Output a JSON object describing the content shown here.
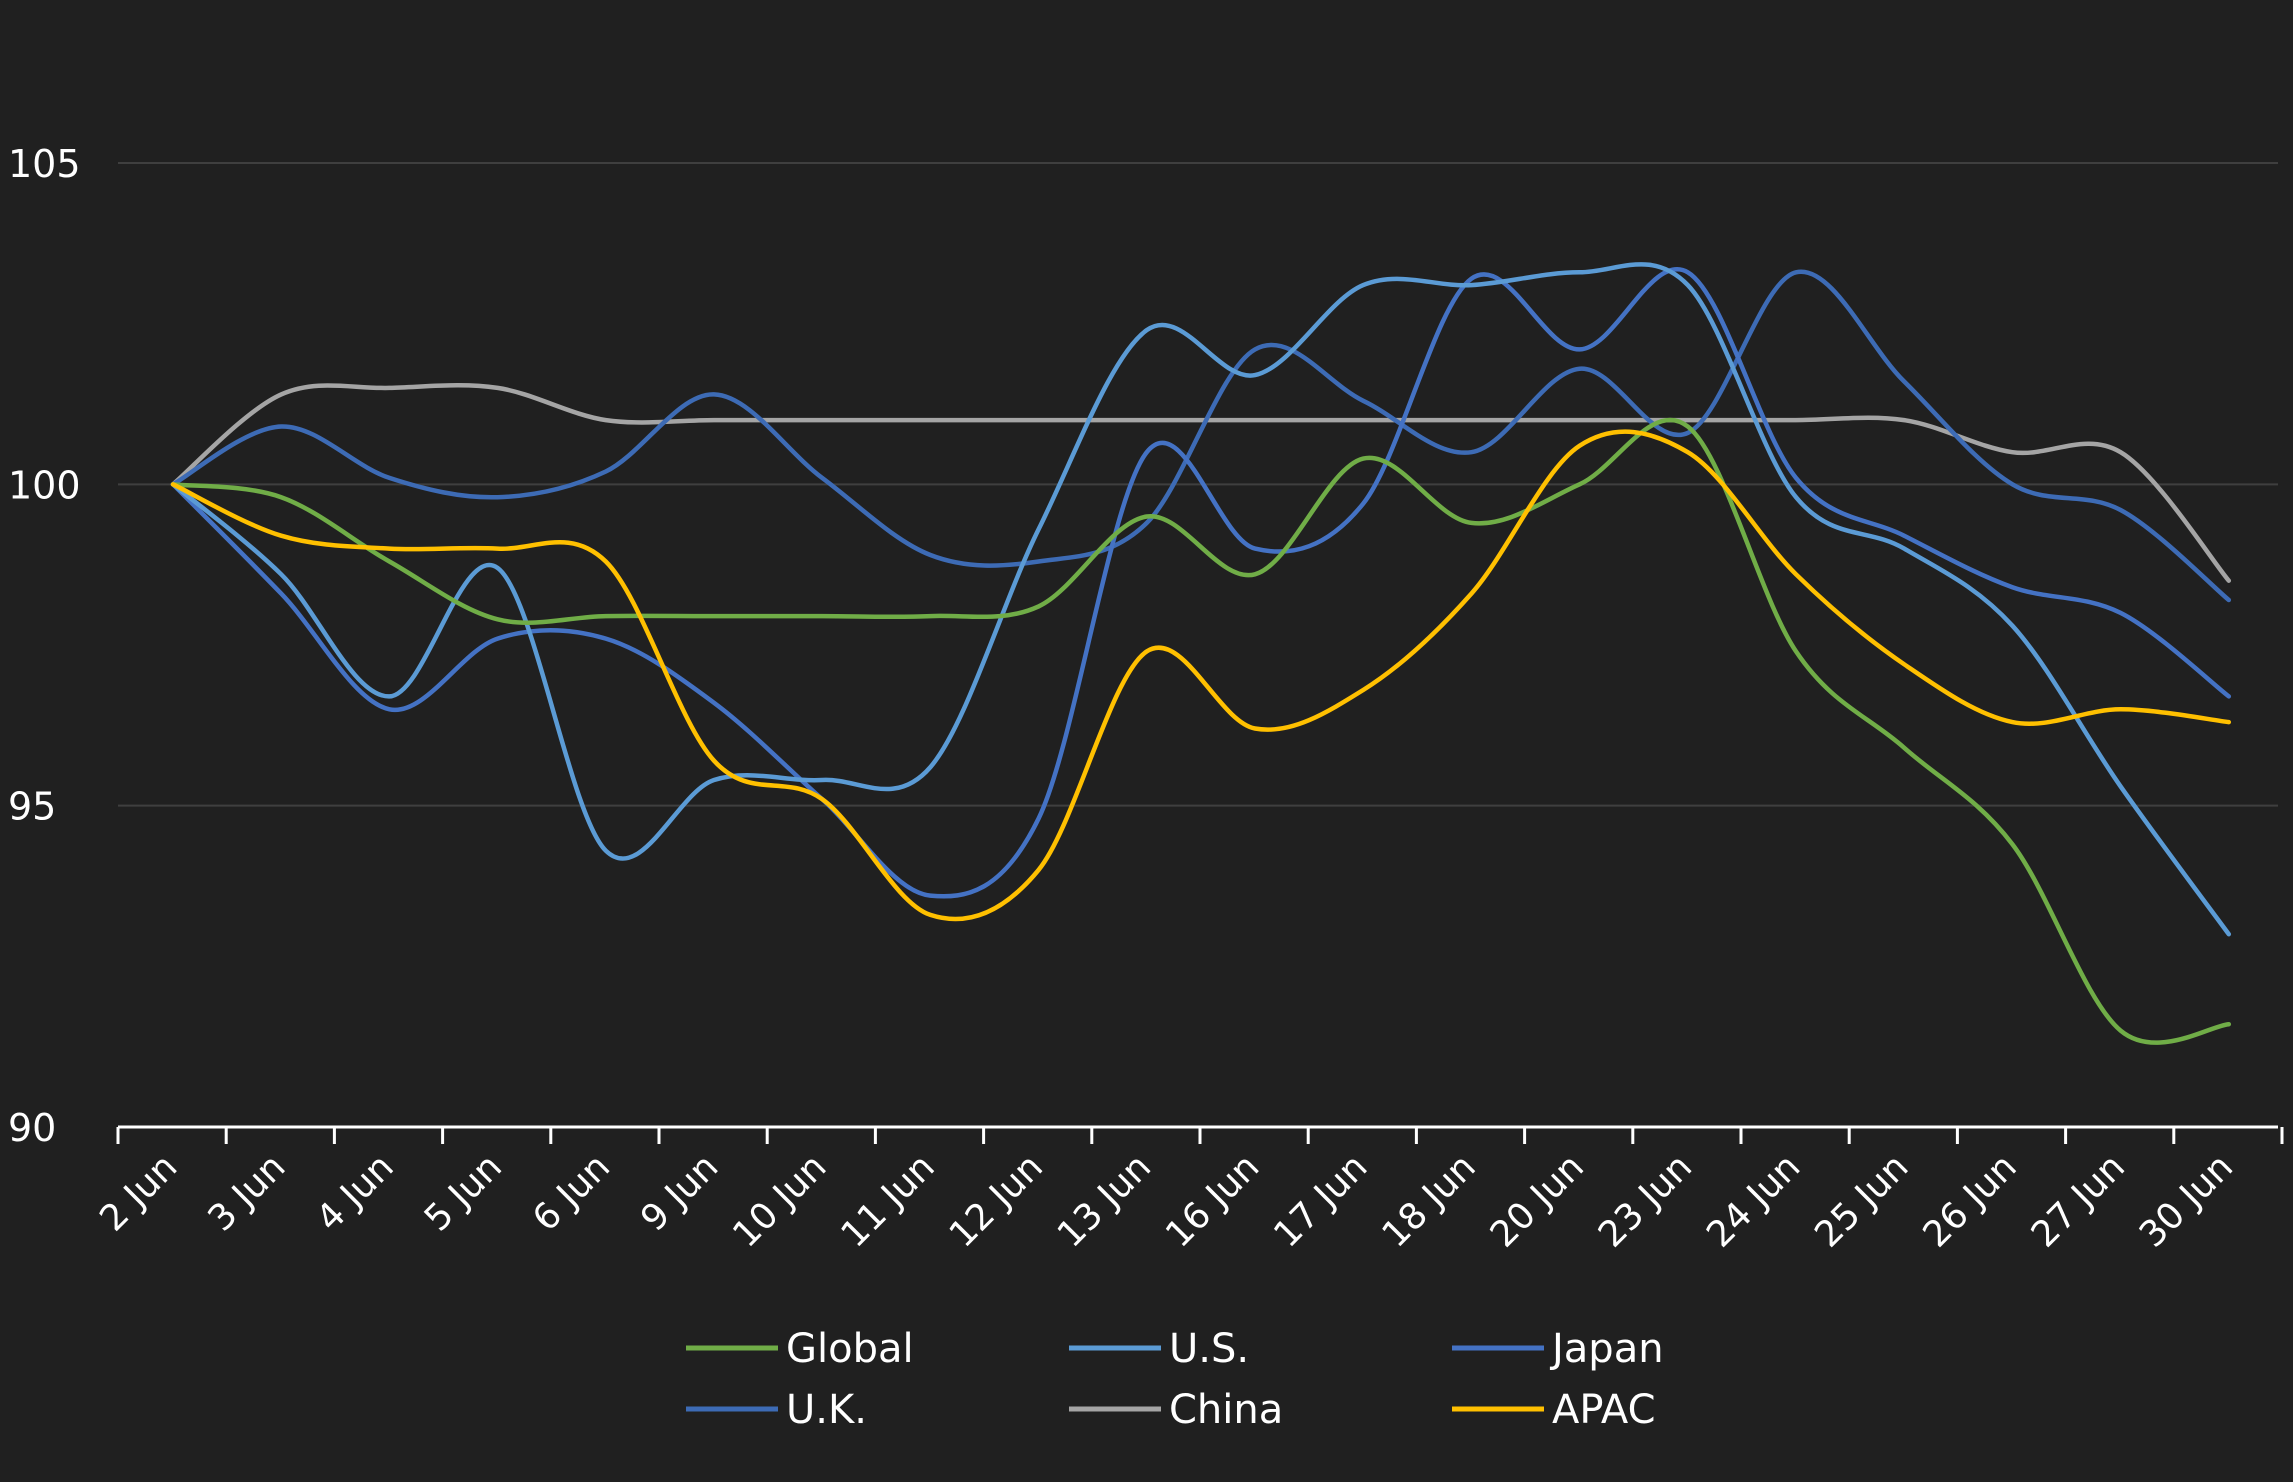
{
  "chart_data": {
    "type": "line",
    "title": "",
    "xlabel": "",
    "ylabel": "",
    "categories": [
      "2 Jun",
      "3 Jun",
      "4 Jun",
      "5 Jun",
      "6 Jun",
      "9 Jun",
      "10 Jun",
      "11 Jun",
      "12 Jun",
      "13 Jun",
      "16 Jun",
      "17 Jun",
      "18 Jun",
      "20 Jun",
      "23 Jun",
      "24 Jun",
      "25 Jun",
      "26 Jun",
      "27 Jun",
      "30 Jun"
    ],
    "ylim": [
      90,
      106
    ],
    "yticks": [
      90,
      95,
      100,
      105
    ],
    "grid": true,
    "legend_position": "bottom",
    "series": [
      {
        "name": "Global",
        "color": "#70AD47",
        "values": [
          100,
          99.8,
          98.8,
          97.9,
          97.95,
          97.95,
          97.95,
          97.95,
          98.1,
          99.5,
          98.6,
          100.4,
          99.4,
          100.0,
          100.9,
          97.4,
          95.9,
          94.4,
          91.5,
          91.6
        ]
      },
      {
        "name": "U.S.",
        "color": "#5B9BD5",
        "values": [
          100,
          98.6,
          96.7,
          98.7,
          94.3,
          95.4,
          95.4,
          95.6,
          99.3,
          102.4,
          101.7,
          103.1,
          103.1,
          103.3,
          103.1,
          99.8,
          99.0,
          97.8,
          95.3,
          93.0
        ]
      },
      {
        "name": "Japan",
        "color": "#4472C4",
        "values": [
          100,
          98.3,
          96.5,
          97.6,
          97.6,
          96.6,
          95.1,
          93.6,
          94.8,
          100.5,
          99.0,
          99.7,
          103.2,
          102.1,
          103.3,
          100.1,
          99.2,
          98.4,
          98.0,
          96.7
        ]
      },
      {
        "name": "U.K.",
        "color": "#3D6BB5",
        "values": [
          100,
          100.9,
          100.1,
          99.8,
          100.2,
          101.4,
          100.1,
          98.9,
          98.8,
          99.4,
          102.1,
          101.3,
          100.5,
          101.8,
          100.8,
          103.3,
          101.6,
          100.0,
          99.6,
          98.2
        ]
      },
      {
        "name": "China",
        "color": "#A5A5A5",
        "values": [
          100,
          101.4,
          101.5,
          101.5,
          101.0,
          101.0,
          101.0,
          101.0,
          101.0,
          101.0,
          101.0,
          101.0,
          101.0,
          101.0,
          101.0,
          101.0,
          101.0,
          100.5,
          100.5,
          98.5
        ]
      },
      {
        "name": "APAC",
        "color": "#FFC000",
        "values": [
          100,
          99.2,
          99.0,
          99.0,
          98.8,
          95.7,
          95.1,
          93.3,
          94.0,
          97.4,
          96.2,
          96.8,
          98.3,
          100.6,
          100.5,
          98.6,
          97.2,
          96.3,
          96.5,
          96.3
        ]
      }
    ]
  },
  "colors": {
    "background": "#202020",
    "gridline": "#3f3f3f",
    "axis": "#ffffff",
    "text": "#ffffff"
  }
}
